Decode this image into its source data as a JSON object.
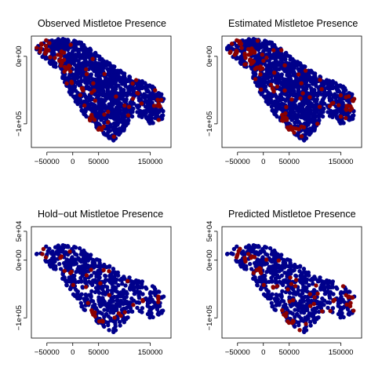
{
  "figure": {
    "colors": {
      "absent": "#00008B",
      "present": "#8B0000",
      "axis": "#000000"
    }
  },
  "chart_data": [
    {
      "type": "scatter",
      "title": "Observed Mistletoe Presence",
      "xlabel": "",
      "ylabel": "",
      "xlim": [
        -80000,
        190000
      ],
      "ylim": [
        -135000,
        30000
      ],
      "xticks": [
        -50000,
        0,
        50000,
        150000
      ],
      "xtick_labels": [
        "−50000",
        "0",
        "50000",
        "150000"
      ],
      "yticks": [
        -100000,
        0
      ],
      "ytick_labels": [
        "−1e+05",
        "0e+00"
      ],
      "grid": false,
      "series": [
        {
          "color": "#00008B",
          "points": "dense blue cloud over survey region"
        },
        {
          "color": "#8B0000",
          "points": "scattered red clusters"
        }
      ]
    },
    {
      "type": "scatter",
      "title": "Estimated Mistletoe Presence",
      "xlabel": "",
      "ylabel": "",
      "xlim": [
        -80000,
        190000
      ],
      "ylim": [
        -135000,
        30000
      ],
      "xticks": [
        -50000,
        0,
        50000,
        150000
      ],
      "xtick_labels": [
        "−50000",
        "0",
        "50000",
        "150000"
      ],
      "yticks": [
        -100000,
        0
      ],
      "ytick_labels": [
        "−1e+05",
        "0e+00"
      ],
      "grid": false
    },
    {
      "type": "scatter",
      "title": "Hold−out Mistletoe Presence",
      "xlabel": "",
      "ylabel": "",
      "xlim": [
        -80000,
        190000
      ],
      "ylim": [
        -135000,
        58000
      ],
      "xticks": [
        -50000,
        0,
        50000,
        150000
      ],
      "xtick_labels": [
        "−50000",
        "0",
        "50000",
        "150000"
      ],
      "yticks": [
        -100000,
        0,
        50000
      ],
      "ytick_labels": [
        "−1e+05",
        "0e+00",
        "5e+04"
      ],
      "grid": false
    },
    {
      "type": "scatter",
      "title": "Predicted Mistletoe Presence",
      "xlabel": "",
      "ylabel": "",
      "xlim": [
        -80000,
        190000
      ],
      "ylim": [
        -135000,
        58000
      ],
      "xticks": [
        -50000,
        0,
        50000,
        150000
      ],
      "xtick_labels": [
        "−50000",
        "0",
        "50000",
        "150000"
      ],
      "yticks": [
        -100000,
        0,
        50000
      ],
      "ytick_labels": [
        "−1e+05",
        "0e+00",
        "5e+04"
      ],
      "grid": false
    }
  ]
}
